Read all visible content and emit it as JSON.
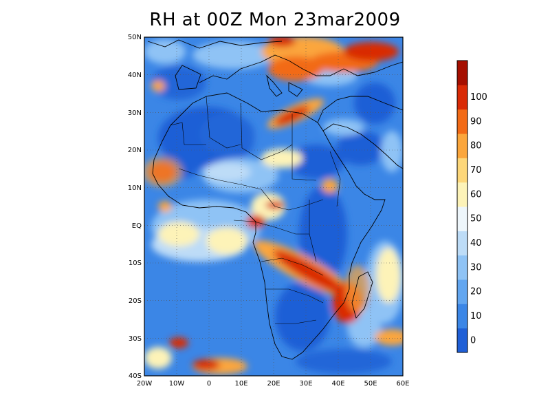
{
  "title": "RH at 00Z Mon 23mar2009",
  "lat_labels": [
    "50N",
    "40N",
    "30N",
    "20N",
    "10N",
    "EQ",
    "10S",
    "20S",
    "30S",
    "40S"
  ],
  "lon_labels": [
    "20W",
    "10W",
    "0",
    "10E",
    "20E",
    "30E",
    "40E",
    "50E",
    "60E"
  ],
  "colorbar": {
    "labels": [
      "0",
      "10",
      "20",
      "30",
      "40",
      "50",
      "60",
      "70",
      "80",
      "90",
      "100"
    ],
    "colors": [
      "#1f5fd6",
      "#3b86e6",
      "#62a6f0",
      "#8fc3f5",
      "#bddcf7",
      "#eef6fb",
      "#fdf3b8",
      "#fdd77a",
      "#fba63c",
      "#f26a16",
      "#d92a06",
      "#a50f00"
    ]
  },
  "map": {
    "lon_range": [
      -20,
      60
    ],
    "lat_range": [
      -40,
      50
    ],
    "grid": "dotted"
  }
}
